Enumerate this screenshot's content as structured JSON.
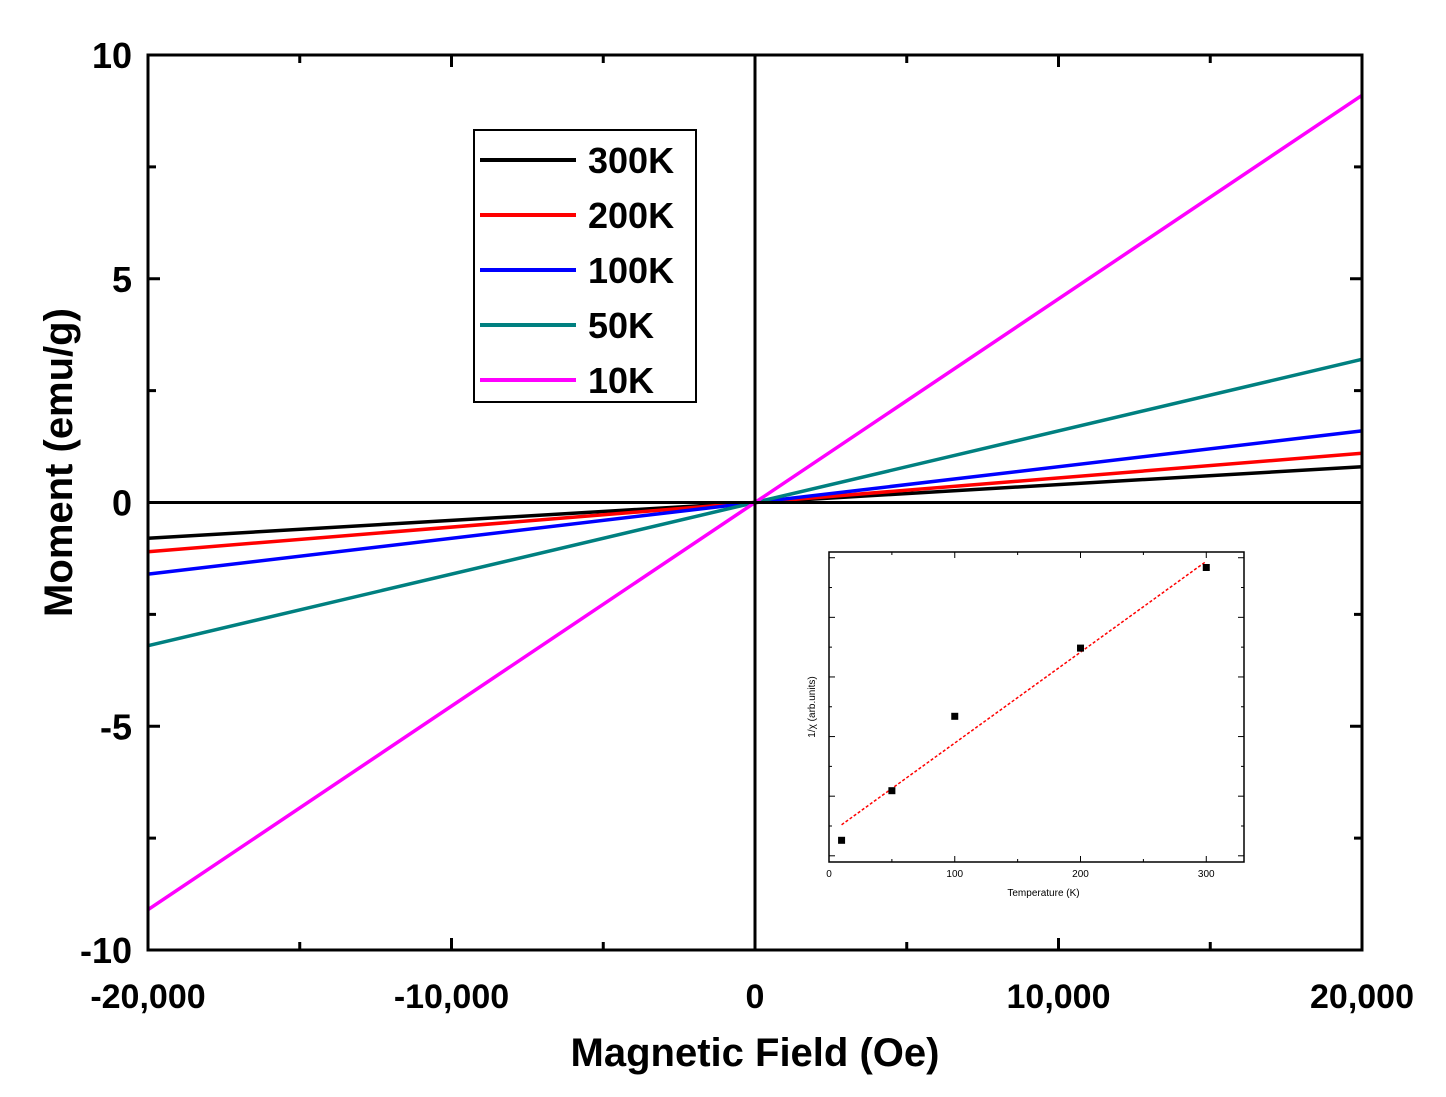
{
  "chart_data": [
    {
      "type": "line",
      "xlabel": "Magnetic Field (Oe)",
      "ylabel": "Moment (emu/g)",
      "xlim": [
        -20000,
        20000
      ],
      "ylim": [
        -10,
        10
      ],
      "xticks": [
        -20000,
        -10000,
        0,
        10000,
        20000
      ],
      "xtick_labels": [
        "-20,000",
        "-10,000",
        "0",
        "10,000",
        "20,000"
      ],
      "yticks": [
        -10,
        -5,
        0,
        5,
        10
      ],
      "ytick_labels": [
        "-10",
        "-5",
        "0",
        "5",
        "10"
      ],
      "legend_position": "top-left",
      "series": [
        {
          "name": "300K",
          "color": "#000000",
          "x": [
            -20000,
            0,
            20000
          ],
          "y": [
            -0.8,
            0,
            0.8
          ]
        },
        {
          "name": "200K",
          "color": "#ff0000",
          "x": [
            -20000,
            0,
            20000
          ],
          "y": [
            -1.1,
            0,
            1.1
          ]
        },
        {
          "name": "100K",
          "color": "#0000ff",
          "x": [
            -20000,
            0,
            20000
          ],
          "y": [
            -1.6,
            0,
            1.6
          ]
        },
        {
          "name": "50K",
          "color": "#008080",
          "x": [
            -20000,
            0,
            20000
          ],
          "y": [
            -3.2,
            0,
            3.2
          ]
        },
        {
          "name": "10K",
          "color": "#ff00ff",
          "x": [
            -20000,
            0,
            20000
          ],
          "y": [
            -9.1,
            0,
            9.1
          ]
        }
      ]
    },
    {
      "type": "scatter",
      "xlabel": "Temperature (K)",
      "ylabel": "1/χ (arb.units)",
      "xlim": [
        0,
        330
      ],
      "ylim": [
        0,
        1
      ],
      "xticks": [
        0,
        100,
        200,
        300
      ],
      "xtick_labels": [
        "0",
        "100",
        "200",
        "300"
      ],
      "points": {
        "x": [
          10,
          50,
          100,
          200,
          300
        ],
        "y": [
          0.07,
          0.23,
          0.47,
          0.69,
          0.95
        ]
      },
      "fit_line": {
        "color": "#ff0000",
        "x": [
          10,
          300
        ],
        "y": [
          0.12,
          0.97
        ]
      }
    }
  ]
}
